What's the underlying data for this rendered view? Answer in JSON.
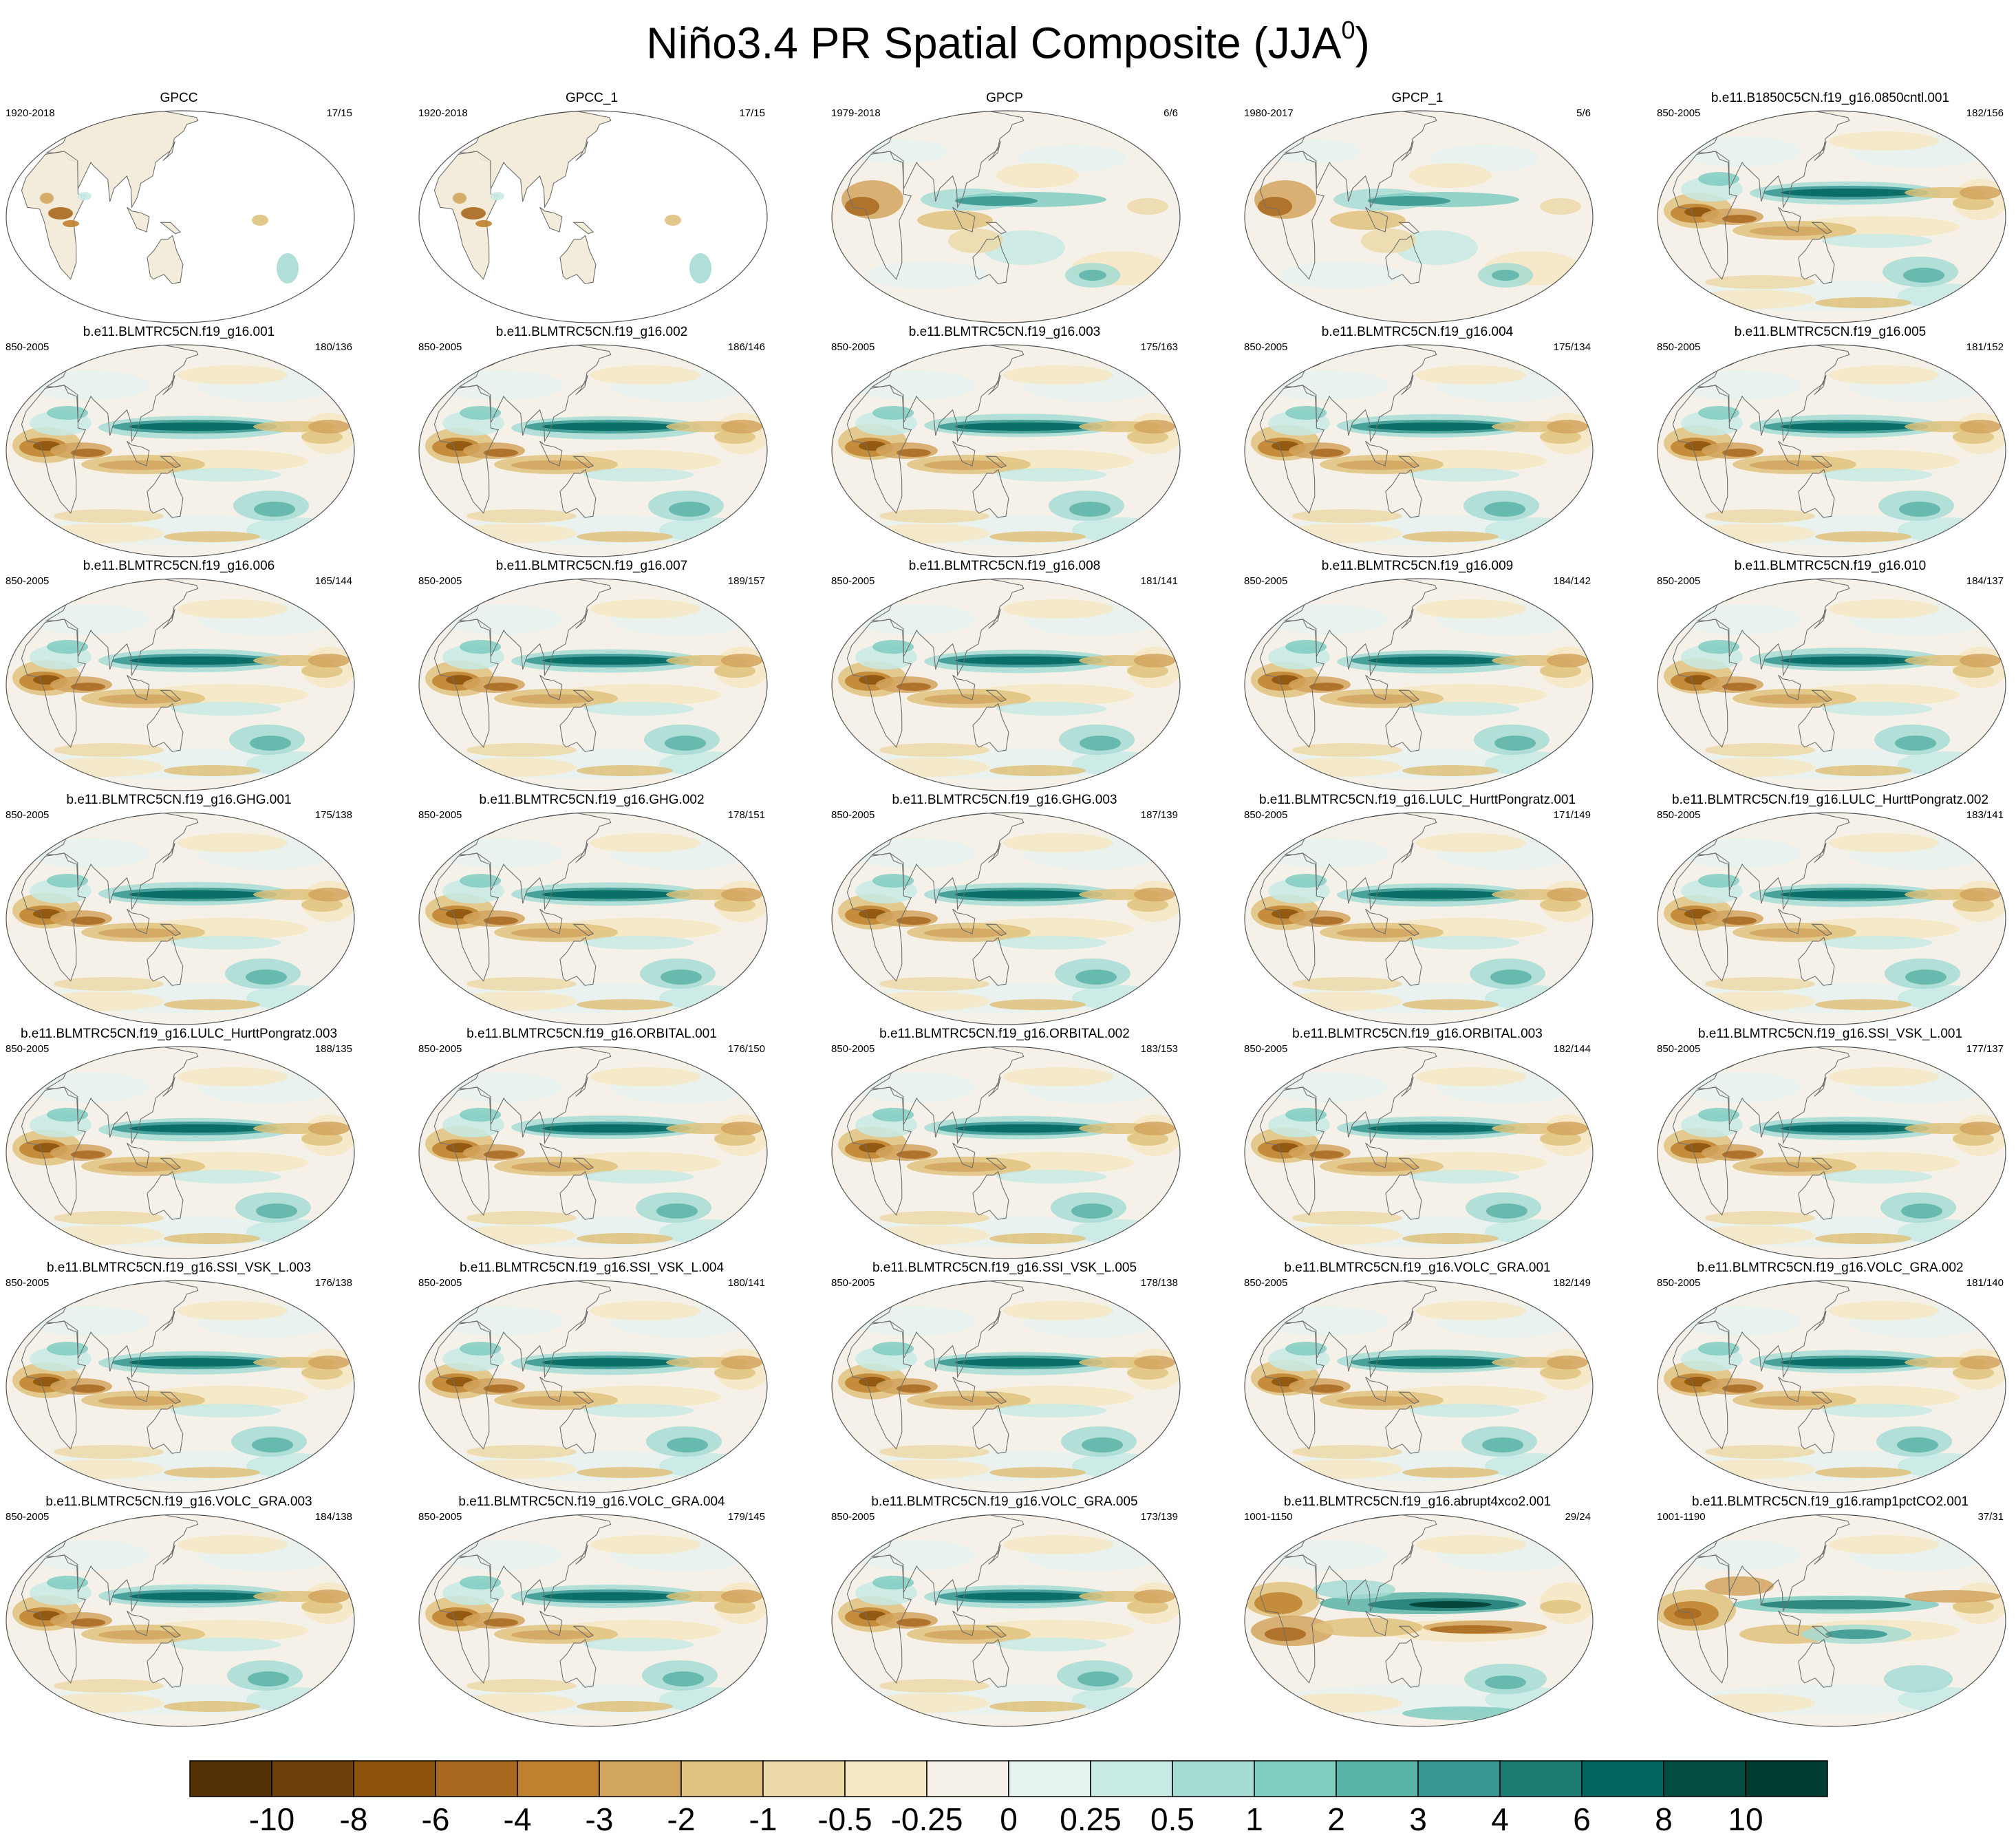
{
  "title": "Niño3.4 PR Spatial Composite (JJA",
  "title_superscript": "0",
  "title_close": ")",
  "chart_data": {
    "type": "heatmap",
    "title": "Niño3.4 PR Spatial Composite (JJA0)",
    "season": "JJA",
    "layout": {
      "rows": 7,
      "cols": 5
    },
    "panels": [
      {
        "name": "GPCC",
        "period": "1920-2018",
        "count": "17/15",
        "kind": "land"
      },
      {
        "name": "GPCC_1",
        "period": "1920-2018",
        "count": "17/15",
        "kind": "land"
      },
      {
        "name": "GPCP",
        "period": "1979-2018",
        "count": "6/6",
        "kind": "obs"
      },
      {
        "name": "GPCP_1",
        "period": "1980-2017",
        "count": "5/6",
        "kind": "obs"
      },
      {
        "name": "b.e11.B1850C5CN.f19_g16.0850cntl.001",
        "period": "850-2005",
        "count": "182/156",
        "kind": "model"
      },
      {
        "name": "b.e11.BLMTRC5CN.f19_g16.001",
        "period": "850-2005",
        "count": "180/136",
        "kind": "model"
      },
      {
        "name": "b.e11.BLMTRC5CN.f19_g16.002",
        "period": "850-2005",
        "count": "186/146",
        "kind": "model"
      },
      {
        "name": "b.e11.BLMTRC5CN.f19_g16.003",
        "period": "850-2005",
        "count": "175/163",
        "kind": "model"
      },
      {
        "name": "b.e11.BLMTRC5CN.f19_g16.004",
        "period": "850-2005",
        "count": "175/134",
        "kind": "model"
      },
      {
        "name": "b.e11.BLMTRC5CN.f19_g16.005",
        "period": "850-2005",
        "count": "181/152",
        "kind": "model"
      },
      {
        "name": "b.e11.BLMTRC5CN.f19_g16.006",
        "period": "850-2005",
        "count": "165/144",
        "kind": "model"
      },
      {
        "name": "b.e11.BLMTRC5CN.f19_g16.007",
        "period": "850-2005",
        "count": "189/157",
        "kind": "model"
      },
      {
        "name": "b.e11.BLMTRC5CN.f19_g16.008",
        "period": "850-2005",
        "count": "181/141",
        "kind": "model"
      },
      {
        "name": "b.e11.BLMTRC5CN.f19_g16.009",
        "period": "850-2005",
        "count": "184/142",
        "kind": "model"
      },
      {
        "name": "b.e11.BLMTRC5CN.f19_g16.010",
        "period": "850-2005",
        "count": "184/137",
        "kind": "model"
      },
      {
        "name": "b.e11.BLMTRC5CN.f19_g16.GHG.001",
        "period": "850-2005",
        "count": "175/138",
        "kind": "model"
      },
      {
        "name": "b.e11.BLMTRC5CN.f19_g16.GHG.002",
        "period": "850-2005",
        "count": "178/151",
        "kind": "model"
      },
      {
        "name": "b.e11.BLMTRC5CN.f19_g16.GHG.003",
        "period": "850-2005",
        "count": "187/139",
        "kind": "model"
      },
      {
        "name": "b.e11.BLMTRC5CN.f19_g16.LULC_HurttPongratz.001",
        "period": "850-2005",
        "count": "171/149",
        "kind": "model"
      },
      {
        "name": "b.e11.BLMTRC5CN.f19_g16.LULC_HurttPongratz.002",
        "period": "850-2005",
        "count": "183/141",
        "kind": "model"
      },
      {
        "name": "b.e11.BLMTRC5CN.f19_g16.LULC_HurttPongratz.003",
        "period": "850-2005",
        "count": "188/135",
        "kind": "model"
      },
      {
        "name": "b.e11.BLMTRC5CN.f19_g16.ORBITAL.001",
        "period": "850-2005",
        "count": "176/150",
        "kind": "model"
      },
      {
        "name": "b.e11.BLMTRC5CN.f19_g16.ORBITAL.002",
        "period": "850-2005",
        "count": "183/153",
        "kind": "model"
      },
      {
        "name": "b.e11.BLMTRC5CN.f19_g16.ORBITAL.003",
        "period": "850-2005",
        "count": "182/144",
        "kind": "model"
      },
      {
        "name": "b.e11.BLMTRC5CN.f19_g16.SSI_VSK_L.001",
        "period": "850-2005",
        "count": "177/137",
        "kind": "model"
      },
      {
        "name": "b.e11.BLMTRC5CN.f19_g16.SSI_VSK_L.003",
        "period": "850-2005",
        "count": "176/138",
        "kind": "model"
      },
      {
        "name": "b.e11.BLMTRC5CN.f19_g16.SSI_VSK_L.004",
        "period": "850-2005",
        "count": "180/141",
        "kind": "model"
      },
      {
        "name": "b.e11.BLMTRC5CN.f19_g16.SSI_VSK_L.005",
        "period": "850-2005",
        "count": "178/138",
        "kind": "model"
      },
      {
        "name": "b.e11.BLMTRC5CN.f19_g16.VOLC_GRA.001",
        "period": "850-2005",
        "count": "182/149",
        "kind": "model"
      },
      {
        "name": "b.e11.BLMTRC5CN.f19_g16.VOLC_GRA.002",
        "period": "850-2005",
        "count": "181/140",
        "kind": "model"
      },
      {
        "name": "b.e11.BLMTRC5CN.f19_g16.VOLC_GRA.003",
        "period": "850-2005",
        "count": "184/138",
        "kind": "model"
      },
      {
        "name": "b.e11.BLMTRC5CN.f19_g16.VOLC_GRA.004",
        "period": "850-2005",
        "count": "179/145",
        "kind": "model"
      },
      {
        "name": "b.e11.BLMTRC5CN.f19_g16.VOLC_GRA.005",
        "period": "850-2005",
        "count": "173/139",
        "kind": "model"
      },
      {
        "name": "b.e11.BLMTRC5CN.f19_g16.abrupt4xco2.001",
        "period": "1001-1150",
        "count": "29/24",
        "kind": "abrupt"
      },
      {
        "name": "b.e11.BLMTRC5CN.f19_g16.ramp1pctCO2.001",
        "period": "1001-1190",
        "count": "37/31",
        "kind": "ramp"
      }
    ],
    "colorbar": {
      "labels": [
        "-10",
        "-8",
        "-6",
        "-4",
        "-3",
        "-2",
        "-1",
        "-0.5",
        "-0.25",
        "0",
        "0.25",
        "0.5",
        "1",
        "2",
        "3",
        "4",
        "6",
        "8",
        "10"
      ],
      "colors": [
        "#543005",
        "#6f3f0b",
        "#8c510a",
        "#a9691e",
        "#bf812d",
        "#d2a55f",
        "#dfc27d",
        "#ecd9a8",
        "#f6e8c3",
        "#f5f1e8",
        "#e6f2ef",
        "#c7eae5",
        "#a6dcd3",
        "#80cdc1",
        "#5ab4a8",
        "#35978f",
        "#1d7d74",
        "#01665e",
        "#014d40",
        "#003c30"
      ]
    }
  }
}
